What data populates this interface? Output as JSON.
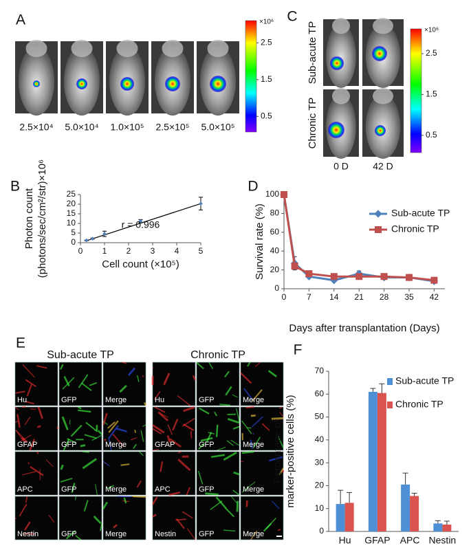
{
  "panels": {
    "letters": [
      "A",
      "B",
      "C",
      "D",
      "E",
      "F"
    ]
  },
  "panel_a": {
    "captions": [
      "2.5×10⁴",
      "5.0×10⁴",
      "1.0×10⁵",
      "2.5×10⁵",
      "5.0×10⁵"
    ],
    "colorbar": {
      "unit": "×10⁶",
      "ticks": [
        2.5,
        1.5,
        0.5
      ]
    }
  },
  "panel_c": {
    "row_labels": [
      "Sub-acute TP",
      "Chronic TP"
    ],
    "captions": [
      "0 D",
      "42 D"
    ],
    "colorbar": {
      "unit": "×10⁶",
      "ticks": [
        2.5,
        1.5,
        0.5
      ]
    }
  },
  "panel_e": {
    "groups": [
      "Sub-acute TP",
      "Chronic TP"
    ],
    "markers": [
      "Hu",
      "GFAP",
      "APC",
      "Nestin"
    ],
    "channels": [
      "GFP",
      "Merge"
    ]
  },
  "chart_data": [
    {
      "type": "scatter",
      "xlabel": "Cell count (×10⁵)",
      "ylabel": [
        "Photon count",
        "(photons/sec/cm²/str)×10⁶"
      ],
      "annotation": "r = 0.996",
      "x": [
        0.25,
        0.5,
        1,
        2.5,
        5
      ],
      "values": [
        1.2,
        2.1,
        4.6,
        11.2,
        20.3
      ],
      "errors": [
        0.2,
        0.3,
        1.4,
        0.8,
        3.3
      ],
      "color": "#4f81bd",
      "trend_line": {
        "x": [
          0.25,
          5
        ],
        "y": [
          1.0,
          20.3
        ],
        "color": "#000000"
      },
      "xlim": [
        0,
        5
      ],
      "xticks": [
        0,
        1,
        2,
        3,
        4,
        5
      ],
      "ylim": [
        0,
        25
      ],
      "yticks": [
        0,
        5,
        10,
        15,
        20,
        25
      ],
      "grid": false
    },
    {
      "type": "line",
      "xlabel": "Days after transplantation (Days)",
      "ylabel": [
        "Survival rate (%)"
      ],
      "x": [
        0,
        3,
        7,
        14,
        21,
        28,
        35,
        42
      ],
      "series": [
        {
          "name": "Sub-acute TP",
          "color": "#4f81bd",
          "marker": "diamond",
          "values": [
            100,
            27,
            13,
            9,
            16,
            12,
            12,
            8
          ],
          "errors": [
            0,
            7,
            1,
            1,
            3,
            2,
            2,
            1
          ]
        },
        {
          "name": "Chronic TP",
          "color": "#c0504d",
          "marker": "square",
          "values": [
            100,
            24,
            16,
            13,
            13,
            13,
            12,
            9
          ],
          "errors": [
            0,
            2,
            1,
            1,
            1,
            1,
            1,
            1
          ]
        }
      ],
      "xlim": [
        0,
        45
      ],
      "xticks": [
        0,
        7,
        14,
        21,
        28,
        35,
        42
      ],
      "ylim": [
        0,
        100
      ],
      "yticks": [
        0,
        20,
        40,
        60,
        80,
        100
      ],
      "grid": false,
      "legend": "upper right"
    },
    {
      "type": "bar",
      "ylabel": [
        "Percentage of",
        "marker-positive cells (%)"
      ],
      "categories": [
        "Hu",
        "GFAP",
        "APC",
        "Nestin"
      ],
      "series": [
        {
          "name": "Sub-acute TP",
          "color": "#4f8fd6",
          "values": [
            12,
            61,
            20.5,
            3.5
          ],
          "errors": [
            6,
            1.5,
            5,
            1.2
          ]
        },
        {
          "name": "Chronic TP",
          "color": "#d9534f",
          "values": [
            12.5,
            60.5,
            15.5,
            3
          ],
          "errors": [
            4.5,
            4,
            1.2,
            1.5
          ]
        }
      ],
      "ylim": [
        0,
        70
      ],
      "yticks": [
        0,
        10,
        20,
        30,
        40,
        50,
        60,
        70
      ],
      "grid": false,
      "legend": "upper right"
    }
  ]
}
